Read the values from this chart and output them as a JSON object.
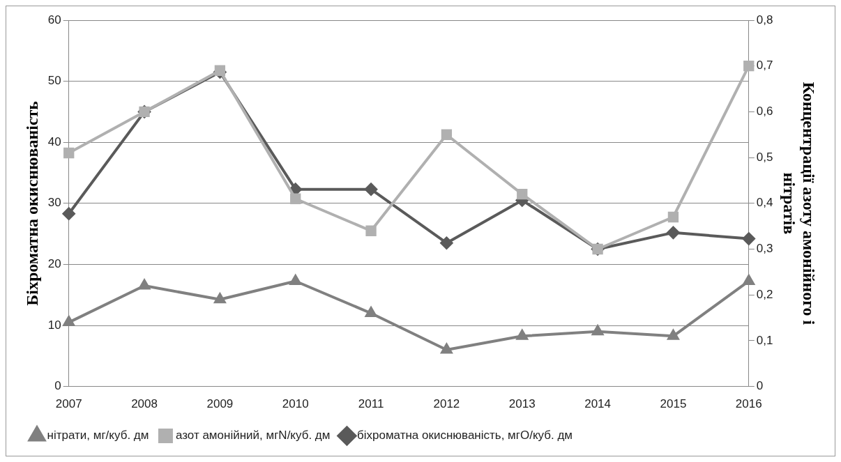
{
  "chart_data": {
    "type": "line",
    "ylabel": "Біхроматна окиснюваність",
    "y2label": "Концентрації азоту амонійного і\nнітратів",
    "categories": [
      "2007",
      "2008",
      "2009",
      "2010",
      "2011",
      "2012",
      "2013",
      "2014",
      "2015",
      "2016"
    ],
    "series": [
      {
        "name": "біхроматна окиснюваність, мгО/куб. дм",
        "color": "#5a5a5a",
        "marker": "diamond",
        "values": [
          28.3,
          45,
          51.5,
          32.3,
          32.3,
          23.5,
          30.5,
          22.5,
          25.2,
          24.2
        ]
      },
      {
        "name": "азот амонійний, мгN/куб. дм",
        "color": "#b0b0b0",
        "marker": "square",
        "axis": "y2",
        "values": [
          0.51,
          0.6,
          0.69,
          0.41,
          0.34,
          0.55,
          0.42,
          0.3,
          0.37,
          0.7
        ]
      },
      {
        "name": "нітрати, мг/куб. дм",
        "color": "#808080",
        "marker": "triangle",
        "axis": "y2",
        "values": [
          0.14,
          0.22,
          0.19,
          0.23,
          0.16,
          0.08,
          0.11,
          0.12,
          0.11,
          0.23
        ]
      }
    ],
    "ylim": [
      0,
      60
    ],
    "yticks": [
      0,
      10,
      20,
      30,
      40,
      50,
      60
    ],
    "y2lim": [
      0,
      0.8
    ],
    "y2ticks": [
      {
        "value": 0,
        "label": "0"
      },
      {
        "value": 0.1,
        "label": "0,1"
      },
      {
        "value": 0.2,
        "label": "0,2"
      },
      {
        "value": 0.3,
        "label": "0,3"
      },
      {
        "value": 0.4,
        "label": "0,4"
      },
      {
        "value": 0.5,
        "label": "0,5"
      },
      {
        "value": 0.6,
        "label": "0,6"
      },
      {
        "value": 0.7,
        "label": "0,7"
      },
      {
        "value": 0.8,
        "label": "0,8"
      }
    ],
    "grid": "y",
    "legend": "bottom"
  }
}
